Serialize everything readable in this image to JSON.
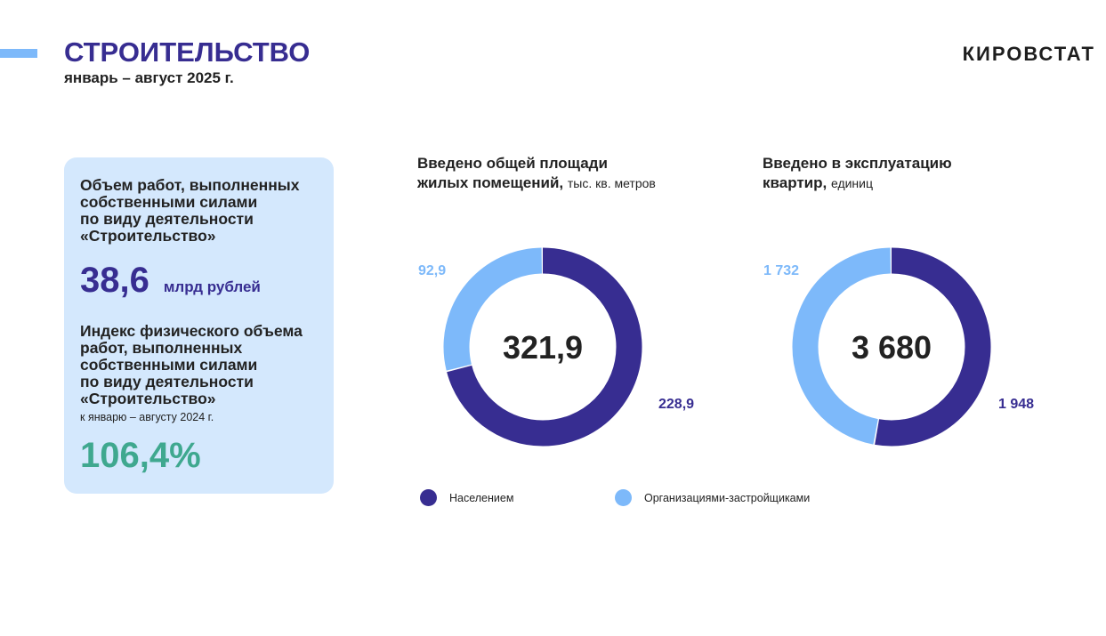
{
  "header": {
    "title": "СТРОИТЕЛЬСТВО",
    "subtitle": "январь – август 2025 г.",
    "logo": "КИРОВСТАТ"
  },
  "card": {
    "heading1": [
      "Объем работ, выполненных",
      "собственными силами",
      "по виду деятельности",
      "«Строительство»"
    ],
    "value1": "38,6",
    "unit1": "млрд рублей",
    "heading2": [
      "Индекс физического объема",
      "работ, выполненных",
      "собственными силами",
      "по виду деятельности",
      "«Строительство»"
    ],
    "note2": "к январю – августу  2024 г.",
    "value2": "106,4%"
  },
  "colors": {
    "population": "#372d91",
    "developers": "#7db9fa",
    "green": "#3fa88f",
    "card": "#d4e8fd"
  },
  "chart_data": [
    {
      "type": "pie",
      "title": "Введено общей площади жилых помещений",
      "title_bold": [
        "Введено общей площади",
        "жилых помещений,"
      ],
      "unit": "тыс. кв. метров",
      "total": "321,9",
      "slices": [
        {
          "name": "Населением",
          "value": 228.9,
          "label": "228,9"
        },
        {
          "name": "Организациями-застройщиками",
          "value": 92.9,
          "label": "92,9"
        }
      ]
    },
    {
      "type": "pie",
      "title": "Введено в эксплуатацию квартир",
      "title_bold": [
        "Введено в эксплуатацию",
        "квартир,"
      ],
      "unit": "единиц",
      "total": "3 680",
      "slices": [
        {
          "name": "Населением",
          "value": 1948,
          "label": "1 948"
        },
        {
          "name": "Организациями-застройщиками",
          "value": 1732,
          "label": "1 732"
        }
      ]
    }
  ],
  "legend": [
    {
      "label": "Населением"
    },
    {
      "label": "Организациями-застройщиками"
    }
  ]
}
